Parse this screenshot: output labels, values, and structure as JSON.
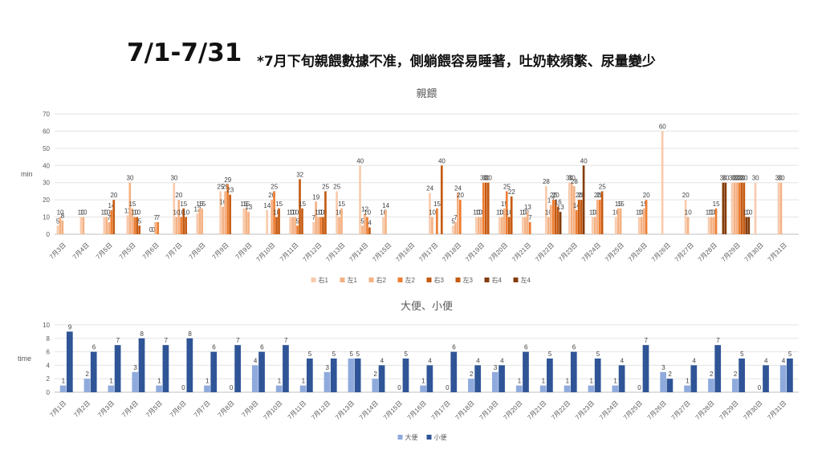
{
  "title": "7/1-7/31",
  "subtitle": "*7月下旬親餵數據不准，側躺餵容易睡著，吐奶較頻繁、尿量變少",
  "chart_data": [
    {
      "type": "bar",
      "title": "親餵",
      "ylabel": "min",
      "ylim": [
        0,
        70
      ],
      "yticks": [
        0,
        10,
        20,
        30,
        40,
        50,
        60,
        70
      ],
      "grid": true,
      "legend_position": "bottom",
      "categories": [
        "7月3日",
        "7月4日",
        "7月5日",
        "7月5日",
        "7月6日",
        "7月7日",
        "7月8日",
        "7月9日",
        "7月9日",
        "7月10日",
        "7月11日",
        "7月12日",
        "7月13日",
        "7月14日",
        "7月15日",
        "7月16日",
        "7月17日",
        "7月18日",
        "7月19日",
        "7月20日",
        "7月21日",
        "7月22日",
        "7月23日",
        "7月24日",
        "7月25日",
        "7月26日",
        "7月26日",
        "7月27日",
        "7月28日",
        "7月29日",
        "7月30日",
        "7月31日"
      ],
      "series": [
        {
          "name": "右1",
          "color": "#f8cbad",
          "values": [
            5,
            10,
            10,
            11,
            0,
            30,
            12,
            25,
            15,
            14,
            10,
            7,
            25,
            40,
            10,
            null,
            24,
            5,
            10,
            10,
            10,
            28,
            30,
            10,
            10,
            10,
            60,
            20,
            10,
            30,
            30,
            30
          ]
        },
        {
          "name": "左1",
          "color": "#f4b183",
          "values": [
            10,
            10,
            10,
            30,
            0,
            10,
            15,
            16,
            15,
            null,
            10,
            19,
            10,
            5,
            14,
            null,
            10,
            7,
            10,
            10,
            10,
            10,
            30,
            10,
            15,
            10,
            null,
            10,
            10,
            30,
            null,
            30
          ]
        },
        {
          "name": "右2",
          "color": "#f4b183",
          "values": [
            8,
            null,
            7,
            15,
            7,
            20,
            15,
            25,
            13,
            20,
            10,
            10,
            15,
            12,
            null,
            null,
            null,
            24,
            10,
            15,
            13,
            17,
            28,
            20,
            15,
            15,
            null,
            null,
            10,
            30,
            null,
            null
          ]
        },
        {
          "name": "左2",
          "color": "#ed7d31",
          "values": [
            null,
            null,
            14,
            10,
            7,
            10,
            null,
            29,
            null,
            25,
            5,
            10,
            null,
            10,
            null,
            null,
            15,
            20,
            30,
            25,
            7,
            20,
            14,
            20,
            null,
            20,
            null,
            null,
            15,
            30,
            null,
            null
          ]
        },
        {
          "name": "右3",
          "color": "#c55a11",
          "values": [
            null,
            null,
            20,
            10,
            null,
            15,
            null,
            23,
            null,
            10,
            32,
            10,
            null,
            4,
            null,
            null,
            null,
            null,
            30,
            10,
            null,
            20,
            20,
            25,
            null,
            null,
            null,
            null,
            null,
            30,
            null,
            null
          ]
        },
        {
          "name": "左3",
          "color": "#c55a11",
          "values": [
            null,
            null,
            null,
            5,
            null,
            10,
            null,
            null,
            null,
            15,
            15,
            25,
            null,
            null,
            null,
            null,
            40,
            null,
            30,
            22,
            null,
            16,
            20,
            null,
            null,
            null,
            null,
            null,
            null,
            30,
            null,
            null
          ]
        },
        {
          "name": "右4",
          "color": "#843c0c",
          "values": [
            null,
            null,
            null,
            null,
            null,
            null,
            null,
            null,
            null,
            null,
            null,
            null,
            null,
            null,
            null,
            null,
            null,
            null,
            null,
            null,
            null,
            13,
            40,
            null,
            null,
            null,
            null,
            null,
            30,
            10,
            null,
            null
          ]
        },
        {
          "name": "左4",
          "color": "#843c0c",
          "values": [
            null,
            null,
            null,
            null,
            null,
            null,
            null,
            null,
            null,
            null,
            null,
            null,
            null,
            null,
            null,
            null,
            null,
            null,
            null,
            null,
            null,
            null,
            null,
            null,
            null,
            null,
            null,
            null,
            30,
            10,
            null,
            null
          ]
        }
      ]
    },
    {
      "type": "bar",
      "title": "大便、小便",
      "ylabel": "time",
      "ylim": [
        0,
        10
      ],
      "yticks": [
        0,
        2,
        4,
        6,
        8,
        10
      ],
      "grid": true,
      "legend_position": "bottom",
      "categories": [
        "7月1日",
        "7月2日",
        "7月3日",
        "7月4日",
        "7月5日",
        "7月6日",
        "7月7日",
        "7月8日",
        "7月9日",
        "7月10日",
        "7月11日",
        "7月12日",
        "7月13日",
        "7月14日",
        "7月15日",
        "7月16日",
        "7月17日",
        "7月18日",
        "7月19日",
        "7月20日",
        "7月21日",
        "7月22日",
        "7月23日",
        "7月24日",
        "7月25日",
        "7月26日",
        "7月27日",
        "7月28日",
        "7月29日",
        "7月30日",
        "7月31日"
      ],
      "series": [
        {
          "name": "大便",
          "color": "#8faadc",
          "values": [
            1,
            2,
            1,
            3,
            1,
            0,
            1,
            0,
            4,
            1,
            1,
            3,
            5,
            2,
            0,
            1,
            0,
            2,
            3,
            1,
            1,
            1,
            1,
            1,
            0,
            3,
            1,
            2,
            2,
            0,
            4
          ]
        },
        {
          "name": "小便",
          "color": "#2f5597",
          "values": [
            9,
            6,
            7,
            8,
            7,
            8,
            6,
            7,
            6,
            7,
            5,
            5,
            5,
            4,
            5,
            4,
            6,
            4,
            4,
            6,
            5,
            6,
            5,
            4,
            7,
            2,
            4,
            7,
            5,
            4,
            5
          ]
        }
      ]
    }
  ]
}
